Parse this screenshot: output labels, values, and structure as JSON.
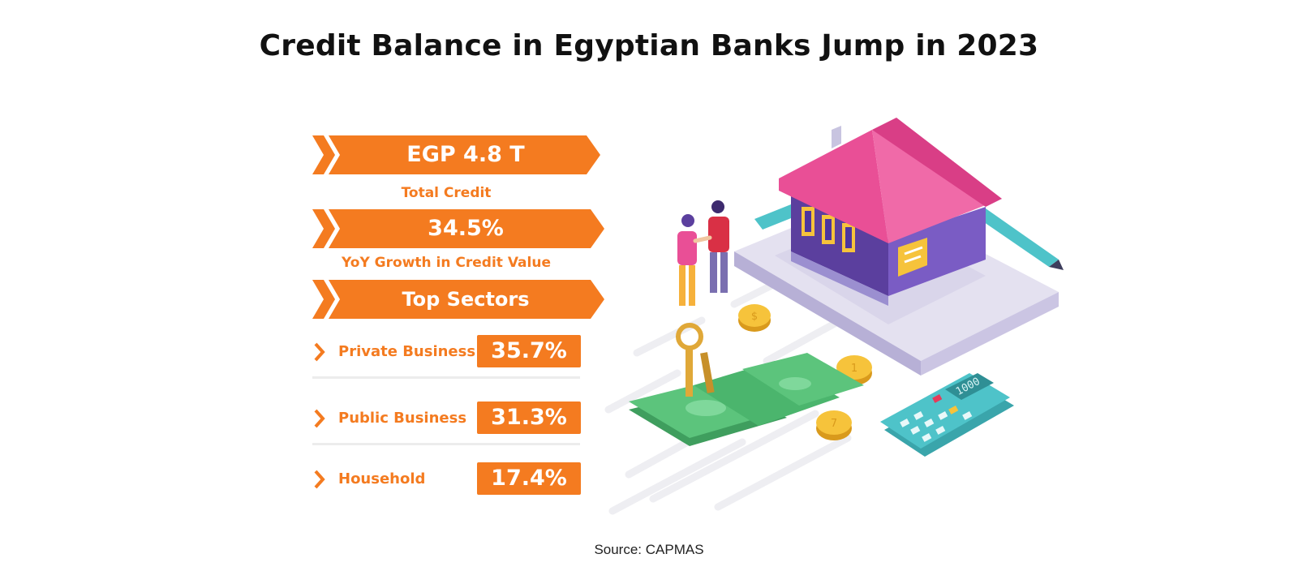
{
  "title": "Credit Balance in Egyptian Banks Jump in 2023",
  "stats": [
    {
      "value": "EGP 4.8 T",
      "label": "Total Credit"
    },
    {
      "value": "34.5%",
      "label": "YoY Growth in Credit Value"
    }
  ],
  "top_sectors_heading": "Top Sectors",
  "sectors": [
    {
      "name": "Private Business",
      "value": "35.7%"
    },
    {
      "name": "Public Business",
      "value": "31.3%"
    },
    {
      "name": "Household",
      "value": "17.4%"
    }
  ],
  "source": "Source: CAPMAS",
  "illustration": {
    "calculator_display": "1000",
    "coin_label_1": "$",
    "coin_label_2": "1",
    "coin_label_3": "7"
  },
  "colors": {
    "accent_orange": "#f47b20",
    "roof_pink": "#e94f96",
    "money_green": "#5cc47c",
    "house_purple": "#5b3f9e",
    "calculator_teal": "#4ec3c9"
  }
}
